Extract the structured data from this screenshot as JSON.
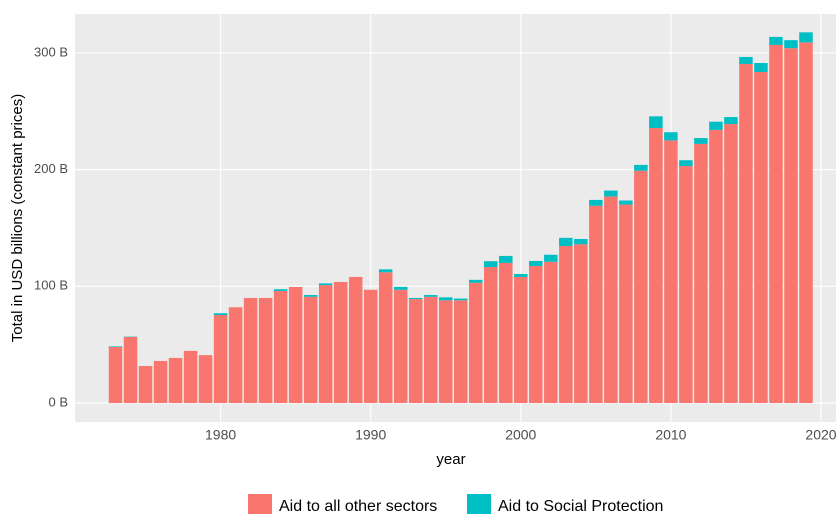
{
  "chart_data": {
    "type": "stacked_bar",
    "x_label": "year",
    "y_label": "Total in USD billions (constant prices)",
    "x": [
      1973,
      1974,
      1975,
      1976,
      1977,
      1978,
      1979,
      1980,
      1981,
      1982,
      1983,
      1984,
      1985,
      1986,
      1987,
      1988,
      1989,
      1990,
      1991,
      1992,
      1993,
      1994,
      1995,
      1996,
      1997,
      1998,
      1999,
      2000,
      2001,
      2002,
      2003,
      2004,
      2005,
      2006,
      2007,
      2008,
      2009,
      2010,
      2011,
      2012,
      2013,
      2014,
      2015,
      2016,
      2017,
      2018,
      2019
    ],
    "series": [
      {
        "name": "Aid to all other sectors",
        "color": "#F8766D",
        "values": [
          48,
          56.6,
          31.7,
          36,
          38.6,
          44.6,
          41,
          75.4,
          82,
          90,
          90,
          96,
          99.4,
          91,
          101,
          103.7,
          108,
          97,
          112,
          97,
          89,
          91,
          88,
          88,
          103,
          116.5,
          120,
          108,
          117.4,
          121,
          134.5,
          136,
          169,
          177,
          170,
          199,
          235.6,
          225,
          203,
          222,
          234,
          239,
          290.5,
          283.6,
          306.8,
          304,
          309
        ]
      },
      {
        "name": "Aid to Social Protection",
        "color": "#00BFC4",
        "values": [
          0.5,
          0.3,
          0,
          0,
          0,
          0,
          0,
          1.5,
          0,
          0,
          0,
          1.5,
          0,
          1.5,
          1.5,
          0,
          0,
          0,
          2.5,
          2.5,
          1,
          1.5,
          2.5,
          1.5,
          2.5,
          5,
          6,
          2.5,
          4.3,
          6,
          7,
          4.5,
          5,
          5,
          3.5,
          5,
          10,
          7,
          5,
          5,
          7,
          6,
          6,
          7.7,
          6.9,
          6.9,
          8.6
        ]
      }
    ],
    "xlim": [
      1970.3,
      2021
    ],
    "xticks": [
      1980,
      1990,
      2000,
      2010,
      2020
    ],
    "ylim": [
      -16.3,
      333.3
    ],
    "yticks": [
      {
        "value": 0,
        "label": "0 B"
      },
      {
        "value": 100,
        "label": "100 B"
      },
      {
        "value": 200,
        "label": "200 B"
      },
      {
        "value": 300,
        "label": "300 B"
      }
    ],
    "grid": true,
    "legend_position": "bottom"
  }
}
